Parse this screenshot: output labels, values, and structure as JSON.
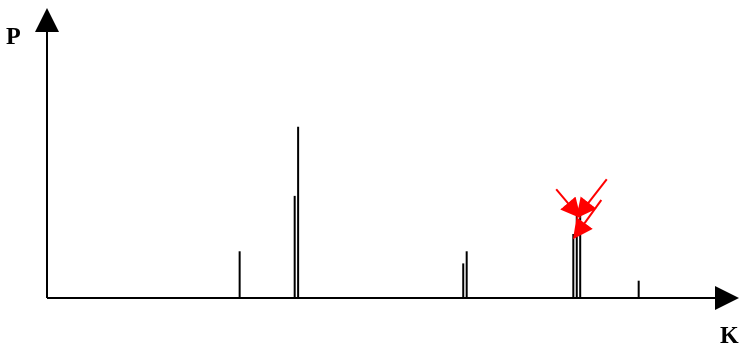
{
  "chart_data": {
    "type": "bar",
    "xlabel": "K",
    "ylabel": "P",
    "grid": false,
    "tick_labels": "none",
    "colors": {
      "axis": "#000000",
      "bar": "#000000",
      "annotation_arrow": "#ff0000"
    },
    "ylim": [
      0,
      1
    ],
    "bars": [
      {
        "x": 0.28,
        "value": 0.27
      },
      {
        "x": 0.36,
        "value": 0.59
      },
      {
        "x": 0.365,
        "value": 0.99
      },
      {
        "x": 0.605,
        "value": 0.2
      },
      {
        "x": 0.61,
        "value": 0.27
      },
      {
        "x": 0.765,
        "value": 0.37
      },
      {
        "x": 0.77,
        "value": 0.49
      },
      {
        "x": 0.775,
        "value": 0.49
      },
      {
        "x": 0.86,
        "value": 0.1
      }
    ],
    "annotations": [
      {
        "type": "arrow",
        "target_bar": 6
      },
      {
        "type": "arrow",
        "target_bar": 7
      },
      {
        "type": "arrow",
        "target_bar": 5
      }
    ]
  }
}
